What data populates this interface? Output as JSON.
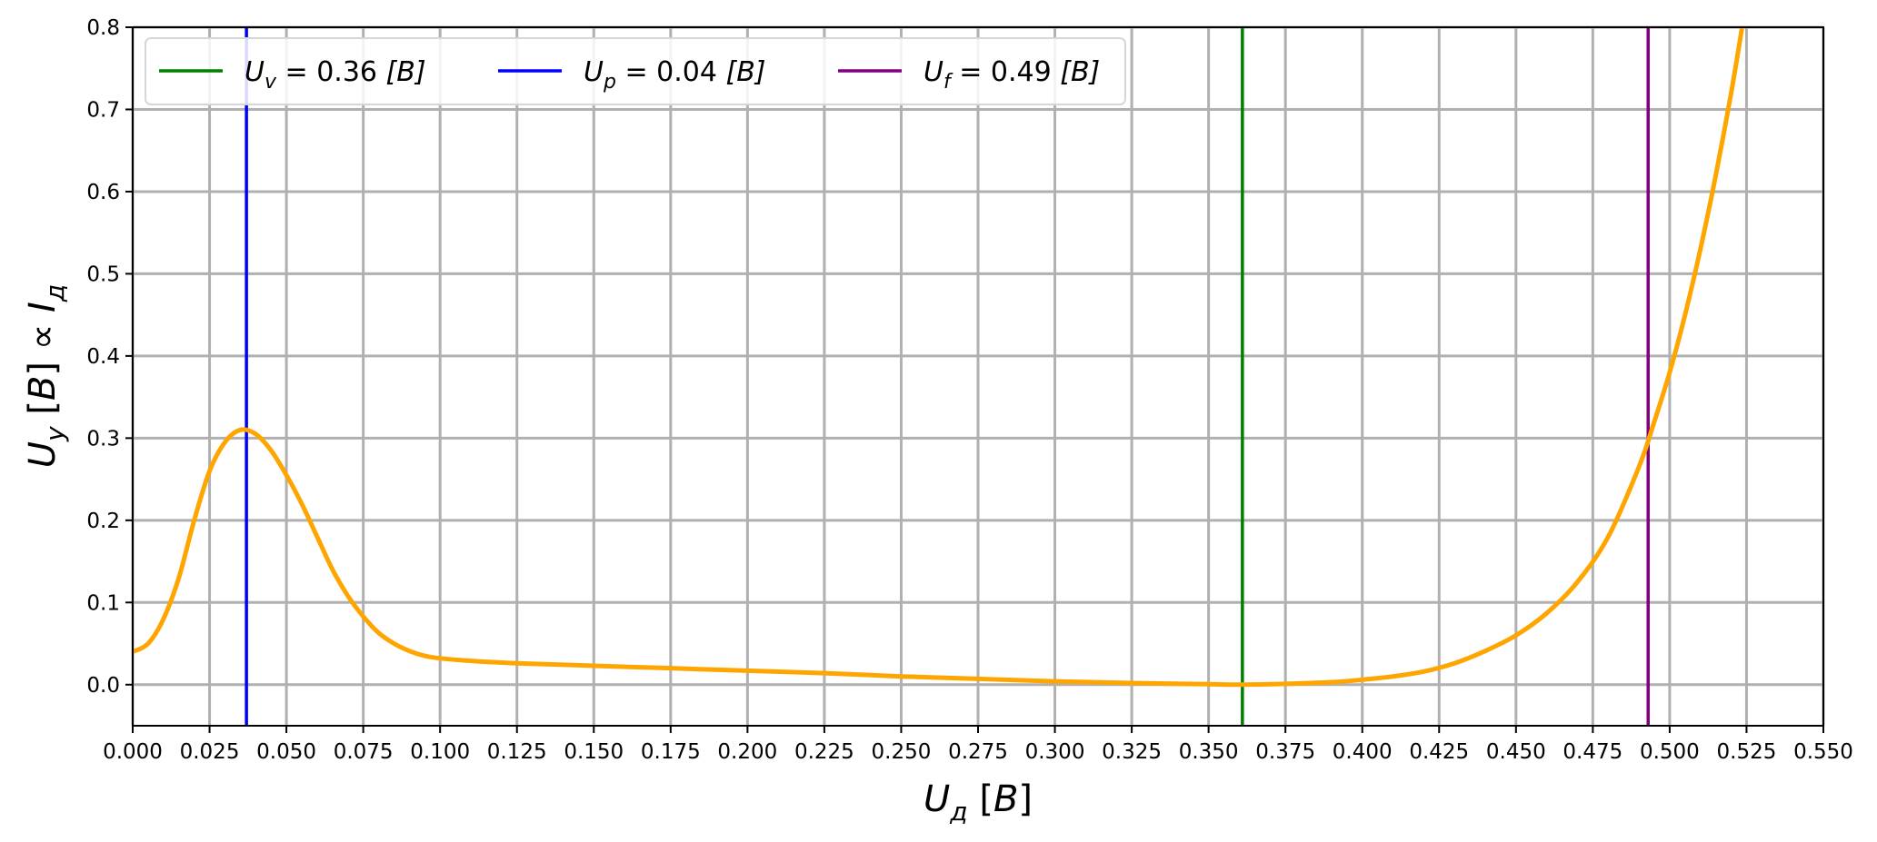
{
  "chart_data": {
    "type": "line",
    "title": "",
    "xlabel": "U_д [B]",
    "ylabel": "U_y [B] ∝ I_д",
    "xlim": [
      0.0,
      0.55
    ],
    "ylim": [
      -0.05,
      0.8
    ],
    "x_ticks": [
      "0.000",
      "0.025",
      "0.050",
      "0.075",
      "0.100",
      "0.125",
      "0.150",
      "0.175",
      "0.200",
      "0.225",
      "0.250",
      "0.275",
      "0.300",
      "0.325",
      "0.350",
      "0.375",
      "0.400",
      "0.425",
      "0.450",
      "0.475",
      "0.500",
      "0.525",
      "0.550"
    ],
    "y_ticks": [
      "0.0",
      "0.1",
      "0.2",
      "0.3",
      "0.4",
      "0.5",
      "0.6",
      "0.7",
      "0.8"
    ],
    "grid": true,
    "legend_position": "top-left",
    "colors": {
      "curve": "#ffa500",
      "Uv": "#008000",
      "Up": "#0000ff",
      "Uf": "#800080",
      "grid": "#b0b0b0"
    },
    "series": [
      {
        "color": "#ffa500",
        "x": [
          0.0,
          0.005,
          0.01,
          0.015,
          0.02,
          0.025,
          0.03,
          0.035,
          0.04,
          0.045,
          0.05,
          0.055,
          0.06,
          0.065,
          0.07,
          0.075,
          0.08,
          0.085,
          0.09,
          0.095,
          0.1,
          0.11,
          0.125,
          0.15,
          0.175,
          0.2,
          0.225,
          0.25,
          0.275,
          0.3,
          0.325,
          0.35,
          0.36,
          0.375,
          0.39,
          0.4,
          0.41,
          0.42,
          0.43,
          0.44,
          0.45,
          0.46,
          0.47,
          0.48,
          0.49,
          0.495,
          0.5,
          0.505,
          0.51,
          0.515,
          0.52,
          0.524
        ],
        "y": [
          0.04,
          0.05,
          0.08,
          0.13,
          0.2,
          0.26,
          0.295,
          0.31,
          0.305,
          0.285,
          0.255,
          0.22,
          0.18,
          0.14,
          0.108,
          0.083,
          0.063,
          0.05,
          0.041,
          0.035,
          0.032,
          0.029,
          0.026,
          0.023,
          0.02,
          0.017,
          0.014,
          0.01,
          0.007,
          0.004,
          0.002,
          0.0005,
          0.0,
          0.001,
          0.003,
          0.006,
          0.01,
          0.016,
          0.026,
          0.041,
          0.06,
          0.087,
          0.125,
          0.18,
          0.265,
          0.32,
          0.38,
          0.45,
          0.53,
          0.62,
          0.72,
          0.81
        ]
      }
    ],
    "vlines": [
      {
        "x": 0.361,
        "color": "#008000",
        "label_main": "U",
        "label_sub": "v",
        "label_value": " = 0.36 ",
        "label_unit": "[B]"
      },
      {
        "x": 0.037,
        "color": "#0000ff",
        "label_main": "U",
        "label_sub": "p",
        "label_value": " = 0.04 ",
        "label_unit": "[B]"
      },
      {
        "x": 0.493,
        "color": "#800080",
        "label_main": "U",
        "label_sub": "f",
        "label_value": " = 0.49 ",
        "label_unit": "[B]"
      }
    ]
  }
}
